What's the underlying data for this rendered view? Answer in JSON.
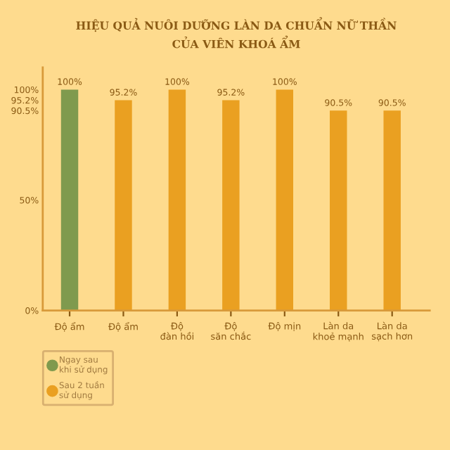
{
  "chart_data": {
    "type": "bar",
    "title": "HIỆU QUẢ NUÔI DƯỠNG LÀN DA CHUẨN NỮ THẦN\nCỦA VIÊN KHOÁ ẨM",
    "categories": [
      "Độ ẩm",
      "Độ ẩm",
      "Độ\nđàn hồi",
      "Độ\nsăn chắc",
      "Độ mịn",
      "Làn da\nkhoẻ mạnh",
      "Làn da\nsạch hơn"
    ],
    "series": [
      {
        "name": "Ngay sau\nkhi sử dụng",
        "color": "#7f9a4e",
        "values": [
          100,
          null,
          null,
          null,
          null,
          null,
          null
        ],
        "value_labels": [
          "100%",
          null,
          null,
          null,
          null,
          null,
          null
        ]
      },
      {
        "name": "Sau 2 tuần\nsử dụng",
        "color": "#eaa021",
        "values": [
          null,
          95.2,
          100,
          95.2,
          100,
          90.5,
          90.5
        ],
        "value_labels": [
          null,
          "95.2%",
          "100%",
          "95.2%",
          "100%",
          "90.5%",
          "90.5%"
        ]
      }
    ],
    "ylim": [
      0,
      110
    ],
    "yticks": [
      {
        "value": 0,
        "label": "0%"
      },
      {
        "value": 50,
        "label": "50%"
      },
      {
        "value": 90.5,
        "label": "90.5%"
      },
      {
        "value": 95.2,
        "label": "95.2%"
      },
      {
        "value": 100,
        "label": "100%"
      }
    ],
    "grid": false,
    "legend": "bottom left"
  }
}
